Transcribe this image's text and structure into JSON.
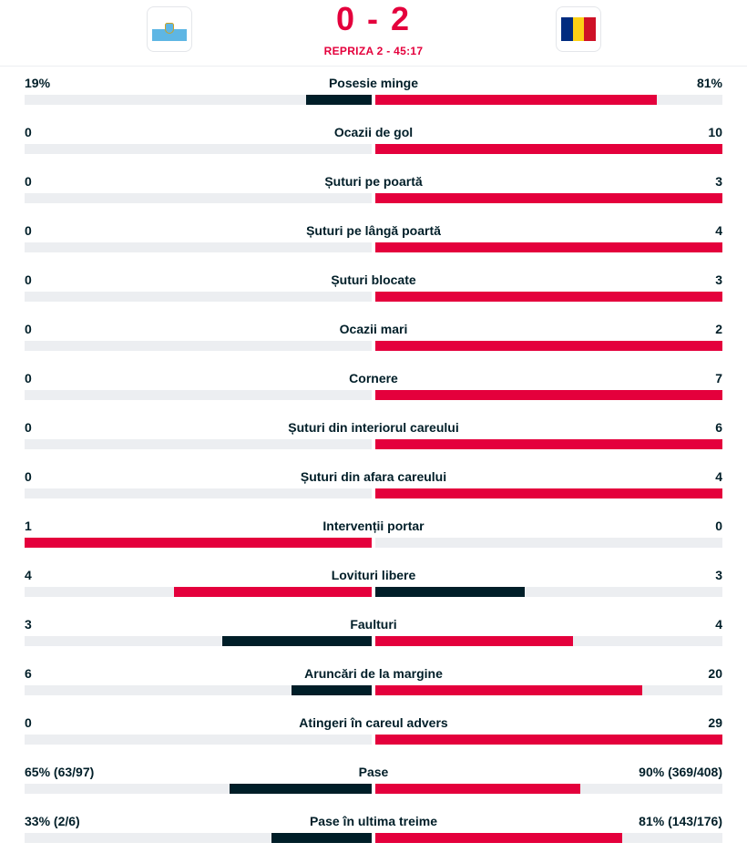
{
  "match": {
    "score": "0 - 2",
    "period": "REPRIZA 2 - 45:17",
    "home_flag": "san-marino-flag",
    "away_flag": "romania-flag"
  },
  "colors": {
    "accent": "#e4003c",
    "dark": "#001e28",
    "track": "#eceef1"
  },
  "stats": [
    {
      "label": "Posesie minge",
      "home": "19%",
      "away": "81%",
      "home_share": 0.19,
      "away_share": 0.81
    },
    {
      "label": "Ocazii de gol",
      "home": "0",
      "away": "10",
      "home_share": 0,
      "away_share": 1
    },
    {
      "label": "Șuturi pe poartă",
      "home": "0",
      "away": "3",
      "home_share": 0,
      "away_share": 1
    },
    {
      "label": "Șuturi pe lângă poartă",
      "home": "0",
      "away": "4",
      "home_share": 0,
      "away_share": 1
    },
    {
      "label": "Șuturi blocate",
      "home": "0",
      "away": "3",
      "home_share": 0,
      "away_share": 1
    },
    {
      "label": "Ocazii mari",
      "home": "0",
      "away": "2",
      "home_share": 0,
      "away_share": 1
    },
    {
      "label": "Cornere",
      "home": "0",
      "away": "7",
      "home_share": 0,
      "away_share": 1
    },
    {
      "label": "Șuturi din interiorul careului",
      "home": "0",
      "away": "6",
      "home_share": 0,
      "away_share": 1
    },
    {
      "label": "Șuturi din afara careului",
      "home": "0",
      "away": "4",
      "home_share": 0,
      "away_share": 1
    },
    {
      "label": "Intervenții portar",
      "home": "1",
      "away": "0",
      "home_share": 1,
      "away_share": 0
    },
    {
      "label": "Lovituri libere",
      "home": "4",
      "away": "3",
      "home_share": 0.57,
      "away_share": 0.43
    },
    {
      "label": "Faulturi",
      "home": "3",
      "away": "4",
      "home_share": 0.43,
      "away_share": 0.57
    },
    {
      "label": "Aruncări de la margine",
      "home": "6",
      "away": "20",
      "home_share": 0.23,
      "away_share": 0.77
    },
    {
      "label": "Atingeri în careul advers",
      "home": "0",
      "away": "29",
      "home_share": 0,
      "away_share": 1
    },
    {
      "label": "Pase",
      "home": "65% (63/97)",
      "away": "90% (369/408)",
      "home_share": 0.41,
      "away_share": 0.59
    },
    {
      "label": "Pase în ultima treime",
      "home": "33% (2/6)",
      "away": "81% (143/176)",
      "home_share": 0.29,
      "away_share": 0.71
    }
  ]
}
